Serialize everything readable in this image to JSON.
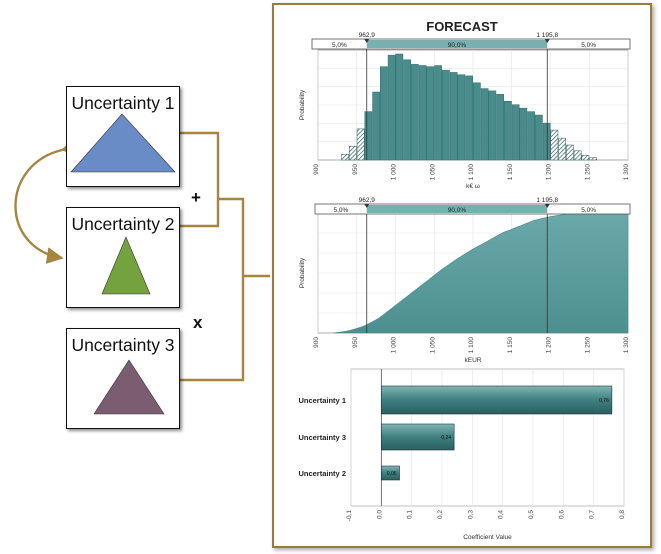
{
  "uncertainties": [
    {
      "label": "Uncertainty 1",
      "color": "#6a8cc6"
    },
    {
      "label": "Uncertainty 2",
      "color": "#73a23e"
    },
    {
      "label": "Uncertainty 3",
      "color": "#7b5c70"
    }
  ],
  "operators": {
    "plus": "+",
    "times": "x"
  },
  "connector_color": "#a5853f",
  "forecast": {
    "title": "FORECAST",
    "band": {
      "left_pct": "5,0%",
      "mid_pct": "90,0%",
      "right_pct": "5,0%",
      "low": "962,9",
      "high": "1 195,8"
    }
  },
  "chart_data": [
    {
      "type": "bar",
      "subtype": "histogram",
      "ylabel": "Probability",
      "xlabel": "k€ ω",
      "xlim": [
        900,
        1300
      ],
      "xticks": [
        "900",
        "950",
        "1 000",
        "1 050",
        "1 100",
        "1 150",
        "1 200",
        "1 250",
        "1 300"
      ],
      "percentile_lines": [
        962.9,
        1195.8
      ],
      "bin_width": 10,
      "bins_start": [
        930,
        940,
        950,
        960,
        970,
        980,
        990,
        1000,
        1010,
        1020,
        1030,
        1040,
        1050,
        1060,
        1070,
        1080,
        1090,
        1100,
        1110,
        1120,
        1130,
        1140,
        1150,
        1160,
        1170,
        1180,
        1190,
        1200,
        1210,
        1220,
        1230,
        1240,
        1250
      ],
      "values": [
        0.05,
        0.12,
        0.27,
        0.42,
        0.59,
        0.81,
        0.91,
        0.92,
        0.87,
        0.83,
        0.82,
        0.81,
        0.82,
        0.78,
        0.76,
        0.74,
        0.73,
        0.67,
        0.62,
        0.6,
        0.57,
        0.51,
        0.48,
        0.45,
        0.42,
        0.39,
        0.32,
        0.26,
        0.19,
        0.13,
        0.08,
        0.04,
        0.02
      ],
      "color": "#4a8c8c",
      "grid": true
    },
    {
      "type": "area",
      "subtype": "cumulative",
      "ylabel": "Probability",
      "xlabel": "kEUR",
      "xlim": [
        900,
        1300
      ],
      "xticks": [
        "900",
        "950",
        "1 000",
        "1 050",
        "1 100",
        "1 150",
        "1 200",
        "1 250",
        "1 300"
      ],
      "percentile_lines": [
        962.9,
        1195.8
      ],
      "x": [
        920,
        940,
        960,
        980,
        1000,
        1020,
        1040,
        1060,
        1080,
        1100,
        1120,
        1140,
        1160,
        1180,
        1200,
        1220,
        1240,
        1260,
        1280,
        1300
      ],
      "y": [
        0.0,
        0.02,
        0.06,
        0.13,
        0.23,
        0.33,
        0.43,
        0.53,
        0.62,
        0.7,
        0.77,
        0.84,
        0.89,
        0.94,
        0.97,
        0.99,
        1.0,
        1.0,
        1.0,
        1.0
      ],
      "color": "#5a9a9a",
      "grid": true
    },
    {
      "type": "bar",
      "orientation": "horizontal",
      "categories": [
        "Uncertainty 1",
        "Uncertainty 3",
        "Uncertainty 2"
      ],
      "values": [
        0.76,
        0.24,
        0.06
      ],
      "value_labels": [
        "0,76",
        "0,24",
        "0,06"
      ],
      "xlabel": "Coefficient Value",
      "xlim": [
        -0.1,
        0.8
      ],
      "xticks": [
        "-0,1",
        "0,0",
        "0,1",
        "0,2",
        "0,3",
        "0,4",
        "0,5",
        "0,6",
        "0,7",
        "0,8"
      ],
      "color": "#3f7f7f",
      "grid": true
    }
  ]
}
